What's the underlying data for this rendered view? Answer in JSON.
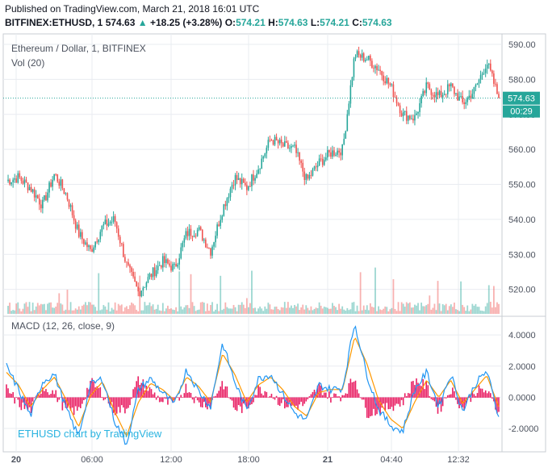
{
  "header": {
    "published": "Published on TradingView.com, March 21, 2018 16:01 UTC",
    "symbol": "BITFINEX:ETHUSD, 1",
    "last": "574.63",
    "change": "+18.25 (+3.28%)",
    "open_label": "O:",
    "open": "574.21",
    "high_label": "H:",
    "high": "574.63",
    "low_label": "L:",
    "low": "574.21",
    "close_label": "C:",
    "close": "574.63"
  },
  "colors": {
    "up": "#26a69a",
    "down": "#ef5350",
    "macd_line": "#2196f3",
    "signal_line": "#ff9800",
    "histogram": "#e91e63",
    "grid": "#e9ecf1",
    "axis_text": "#4c525e",
    "price_label_bg": "#26a69a"
  },
  "chart_data": [
    {
      "type": "candlestick",
      "title": "Ethereum / Dollar, 1, BITFINEX",
      "y_ticks": [
        "590.00",
        "580.00",
        "570.00",
        "560.00",
        "550.00",
        "540.00",
        "530.00",
        "520.00"
      ],
      "ylim": [
        513,
        593
      ],
      "x_ticks": [
        "20",
        "06:00",
        "12:00",
        "18:00",
        "21",
        "04:40",
        "12:32"
      ],
      "last_price_label": "574.63",
      "countdown_label": "00:29",
      "grid": true,
      "series": [
        {
          "x": [
            "20 00:00",
            "20 01:00",
            "20 02:00",
            "20 03:00",
            "20 04:00",
            "20 05:00",
            "20 06:00",
            "20 07:00",
            "20 08:00",
            "20 09:00",
            "20 10:00",
            "20 11:00",
            "20 12:00",
            "20 13:00",
            "20 14:00",
            "20 15:00",
            "20 16:00",
            "20 17:00",
            "20 18:00",
            "20 19:00",
            "20 20:00",
            "20 21:00",
            "20 22:00",
            "20 23:00",
            "21 00:00",
            "21 01:00",
            "21 02:00",
            "21 03:00",
            "21 04:00",
            "21 04:40",
            "21 05:30",
            "21 06:30",
            "21 07:30",
            "21 08:30",
            "21 09:30",
            "21 10:30",
            "21 11:30",
            "21 12:32",
            "21 13:30",
            "21 14:30",
            "21 15:30",
            "21 16:01"
          ],
          "values": [
            551,
            552,
            549,
            544,
            553,
            547,
            536,
            531,
            538,
            540,
            527,
            519,
            524,
            528,
            526,
            536,
            537,
            531,
            543,
            552,
            549,
            555,
            563,
            561,
            560,
            551,
            556,
            559,
            560,
            587,
            586,
            583,
            578,
            570,
            569,
            578,
            575,
            578,
            573,
            577,
            585,
            574.63
          ]
        }
      ]
    },
    {
      "type": "bar",
      "title": "Vol (20)",
      "note": "volume histogram drawn at bottom of price pane"
    },
    {
      "type": "line",
      "title": "MACD (12, 26, close, 9)",
      "y_ticks": [
        "4.0000",
        "2.0000",
        "0.0000",
        "-2.0000"
      ],
      "ylim": [
        -3.5,
        5.2
      ],
      "series": [
        {
          "name": "MACD",
          "x": [
            "20 00:00",
            "20 01:00",
            "20 02:00",
            "20 03:00",
            "20 04:00",
            "20 05:00",
            "20 06:00",
            "20 07:00",
            "20 08:00",
            "20 09:00",
            "20 10:00",
            "20 11:00",
            "20 12:00",
            "20 13:00",
            "20 14:00",
            "20 15:00",
            "20 16:00",
            "20 17:00",
            "20 18:00",
            "20 19:00",
            "20 20:00",
            "20 21:00",
            "20 22:00",
            "20 23:00",
            "21 00:00",
            "21 01:00",
            "21 02:00",
            "21 03:00",
            "21 04:00",
            "21 04:40",
            "21 05:30",
            "21 06:30",
            "21 07:30",
            "21 08:30",
            "21 09:30",
            "21 10:30",
            "21 11:30",
            "21 12:32",
            "21 13:30",
            "21 14:30",
            "21 15:30",
            "21 16:01"
          ],
          "values": [
            2.0,
            0.5,
            -1.2,
            1.0,
            1.5,
            -0.8,
            -2.5,
            0.8,
            1.2,
            -1.5,
            -3.0,
            0.5,
            1.2,
            0.3,
            -0.5,
            1.8,
            0.4,
            -0.6,
            3.5,
            1.0,
            -0.8,
            1.2,
            1.5,
            0.2,
            -1.0,
            -1.5,
            0.8,
            0.5,
            0.6,
            4.8,
            1.5,
            -0.8,
            -1.8,
            -2.2,
            0.5,
            1.6,
            -0.6,
            1.5,
            -0.9,
            0.8,
            1.7,
            -1.3
          ]
        },
        {
          "name": "Signal",
          "values": [
            1.6,
            0.8,
            -0.6,
            0.5,
            1.3,
            -0.2,
            -1.9,
            0.1,
            1.0,
            -0.9,
            -2.5,
            -0.3,
            0.9,
            0.5,
            -0.2,
            1.3,
            0.7,
            -0.3,
            2.8,
            1.5,
            -0.3,
            0.8,
            1.3,
            0.5,
            -0.6,
            -1.2,
            0.3,
            0.5,
            0.5,
            3.9,
            2.2,
            -0.2,
            -1.4,
            -2.0,
            -0.3,
            1.1,
            0.0,
            1.1,
            -0.4,
            0.5,
            1.4,
            -0.6
          ]
        }
      ]
    }
  ],
  "watermark": "ETHUSD chart by TradingView"
}
